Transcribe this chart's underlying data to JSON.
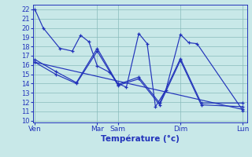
{
  "background_color": "#c8e8e8",
  "grid_color": "#88bbbb",
  "line_color": "#2233bb",
  "ylim": [
    9.8,
    22.5
  ],
  "yticks": [
    10,
    11,
    12,
    13,
    14,
    15,
    16,
    17,
    18,
    19,
    20,
    21,
    22
  ],
  "xlabel": "Température (°c)",
  "xlabel_color": "#2233bb",
  "x_tick_labels": [
    "Ven",
    "",
    "",
    "Mar",
    "Sam",
    "",
    "",
    "Dim",
    "",
    "",
    "Lun"
  ],
  "x_tick_positions": [
    0,
    10,
    20,
    30,
    40,
    50,
    60,
    70,
    80,
    90,
    100
  ],
  "x_named_positions": [
    0,
    30,
    40,
    70,
    100
  ],
  "x_named_labels": [
    "Ven",
    "Mar",
    "Sam",
    "Dim",
    "Lun"
  ],
  "xlim": [
    -1,
    102
  ],
  "series": [
    {
      "x": [
        0,
        4,
        12,
        18,
        22,
        26,
        30,
        36,
        40,
        44,
        50,
        54,
        58,
        63,
        70,
        74,
        78,
        100
      ],
      "y": [
        22,
        20,
        17.8,
        17.5,
        19.2,
        18.5,
        15.9,
        15.2,
        14.0,
        13.6,
        19.4,
        18.3,
        11.5,
        13.3,
        19.3,
        18.4,
        18.3,
        11.1
      ]
    },
    {
      "x": [
        0,
        10,
        20,
        30,
        40,
        50,
        60,
        70,
        80,
        100
      ],
      "y": [
        16.6,
        15.3,
        14.1,
        17.8,
        13.9,
        14.7,
        11.9,
        16.7,
        11.9,
        11.9
      ]
    },
    {
      "x": [
        0,
        10,
        20,
        30,
        40,
        50,
        60,
        70,
        80,
        100
      ],
      "y": [
        16.3,
        15.0,
        14.0,
        17.5,
        13.8,
        14.5,
        11.7,
        16.5,
        11.7,
        11.5
      ]
    },
    {
      "x": [
        0,
        100
      ],
      "y": [
        16.3,
        11.2
      ]
    }
  ]
}
